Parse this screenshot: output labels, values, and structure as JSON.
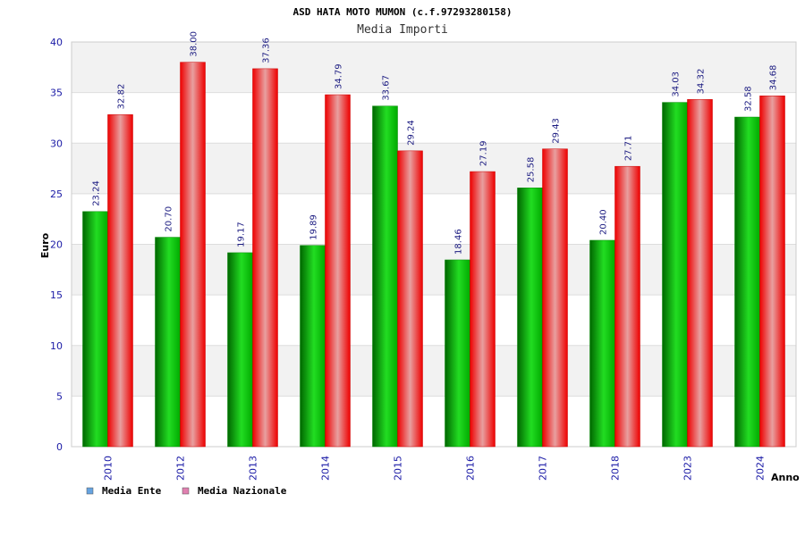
{
  "chart_data": {
    "type": "bar",
    "title": "ASD HATA MOTO MUMON (c.f.97293280158)",
    "subtitle": "Media Importi",
    "xlabel": "Anno",
    "ylabel": "Euro",
    "ylim": [
      0,
      40
    ],
    "yticks": [
      "0",
      "5",
      "10",
      "15",
      "20",
      "25",
      "30",
      "35",
      "40"
    ],
    "categories": [
      "2010",
      "2012",
      "2013",
      "2014",
      "2015",
      "2016",
      "2017",
      "2018",
      "2023",
      "2024"
    ],
    "series": [
      {
        "name": "Media Ente",
        "values": [
          23.24,
          20.7,
          19.17,
          19.89,
          33.67,
          18.46,
          25.58,
          20.4,
          34.03,
          32.58
        ],
        "labels": [
          "23.24",
          "20.70",
          "19.17",
          "19.89",
          "33.67",
          "18.46",
          "25.58",
          "20.40",
          "34.03",
          "32.58"
        ],
        "color": "#00b000",
        "legend_color": "#66a3e0"
      },
      {
        "name": "Media Nazionale",
        "values": [
          32.82,
          38.0,
          37.36,
          34.79,
          29.24,
          27.19,
          29.43,
          27.71,
          34.32,
          34.68
        ],
        "labels": [
          "32.82",
          "38.00",
          "37.36",
          "34.79",
          "29.24",
          "27.19",
          "29.43",
          "27.71",
          "34.32",
          "34.68"
        ],
        "color": "#ff1a1a",
        "legend_color": "#e080b0"
      }
    ],
    "grid": true,
    "legend": "bottom-left"
  }
}
